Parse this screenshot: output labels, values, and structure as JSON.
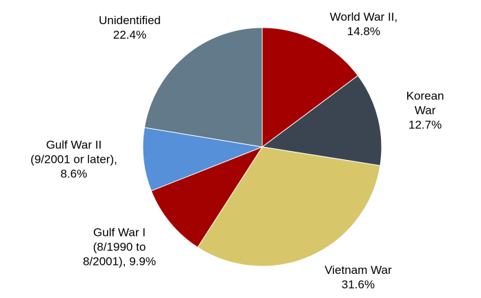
{
  "chart_data": {
    "type": "pie",
    "categories": [
      "World War II,",
      "Korean War",
      "Vietnam War",
      "Gulf War I\n(8/1990 to\n8/2001),",
      "Gulf War II\n(9/2001 or later),",
      "Unidentified"
    ],
    "values": [
      14.8,
      12.7,
      31.6,
      9.9,
      8.6,
      22.4
    ],
    "value_labels": [
      "14.8%",
      "12.7%",
      "31.6%",
      "9.9%",
      "8.6%",
      "22.4%"
    ],
    "colors": [
      "#a50000",
      "#3b4552",
      "#d8c66b",
      "#a30000",
      "#5590d8",
      "#627a8a"
    ]
  }
}
